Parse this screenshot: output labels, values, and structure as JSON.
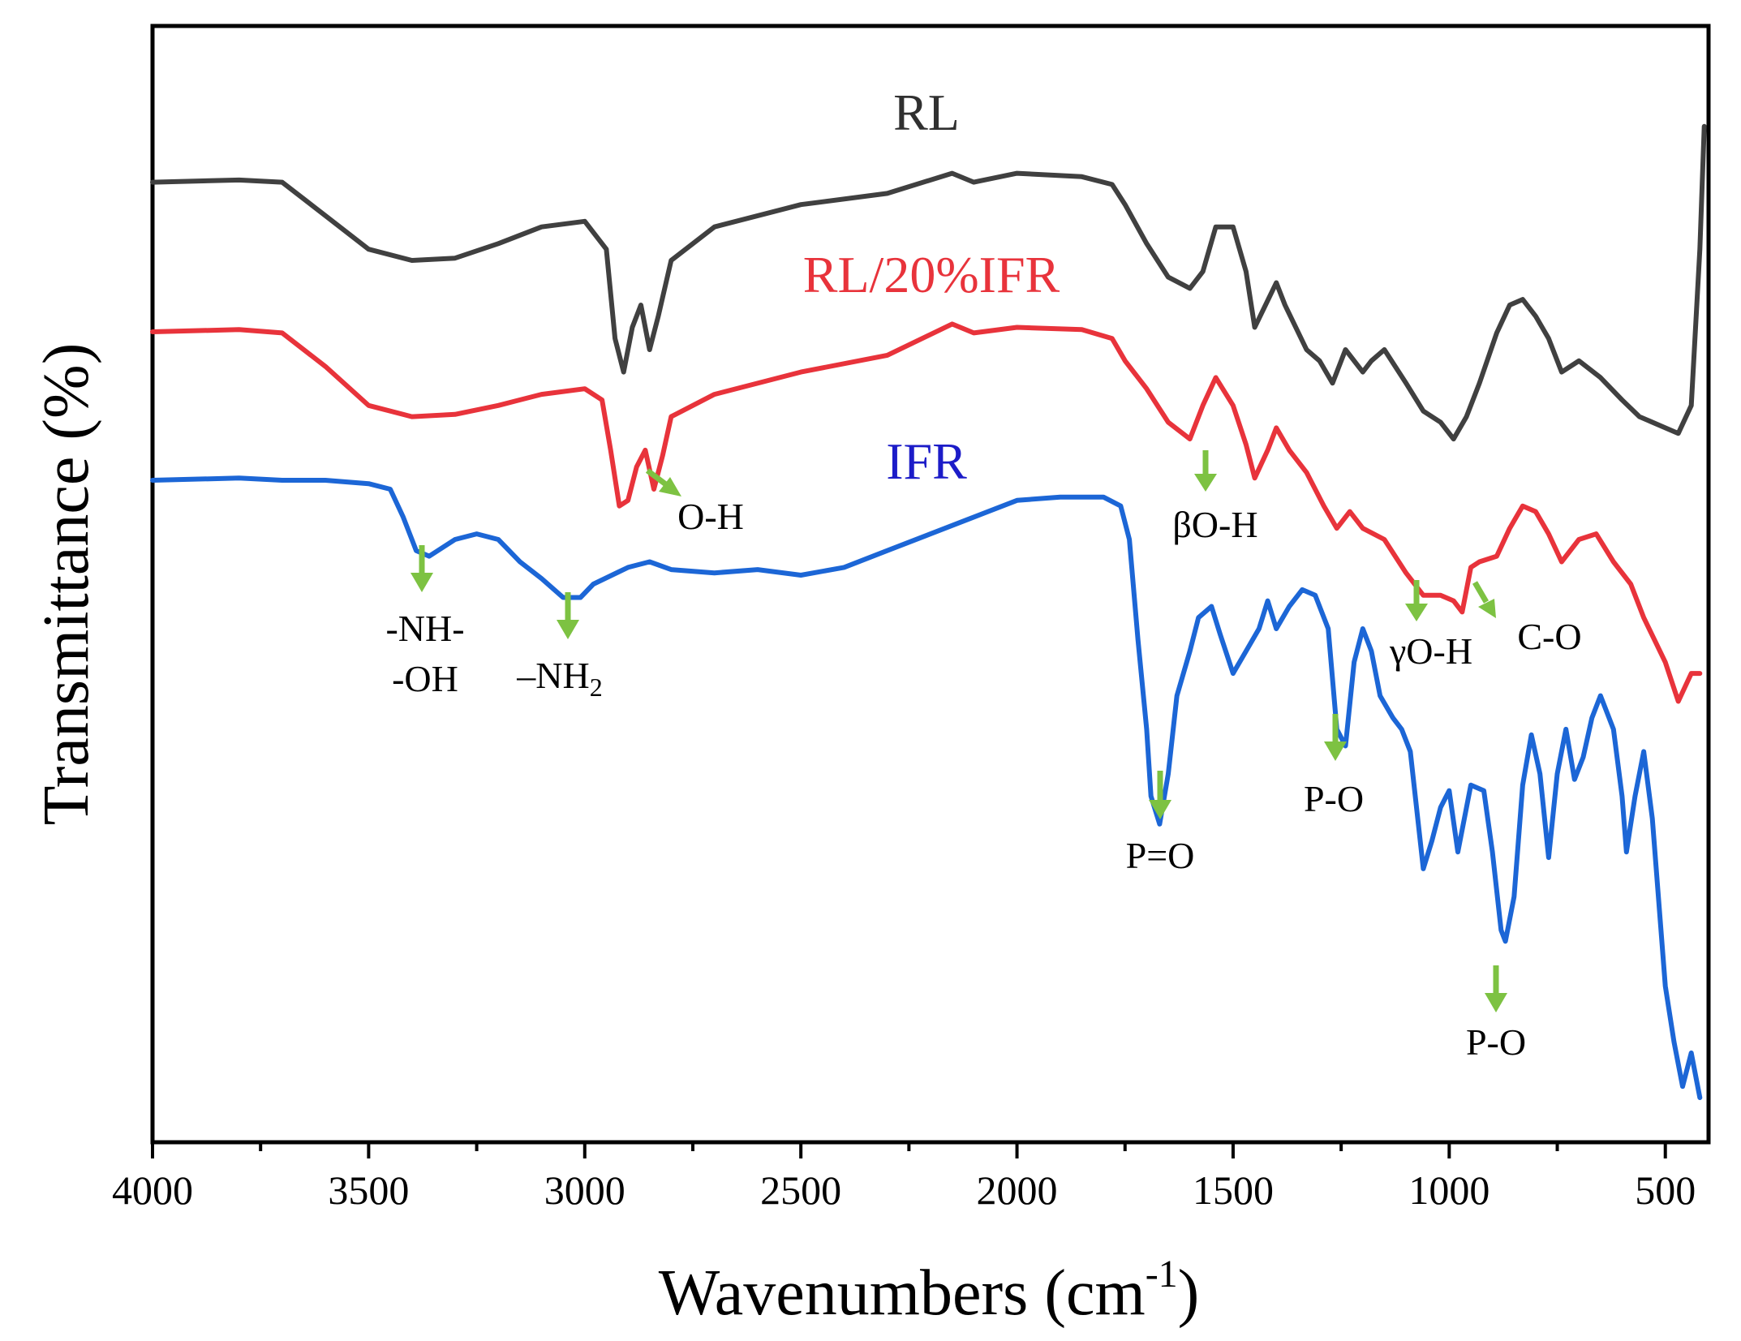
{
  "chart_data": {
    "type": "line",
    "title": "",
    "xlabel": "Wavenumbers (cm",
    "xlabel_sup": "-1",
    "xlabel_close": ")",
    "ylabel": "Transmittance (%)",
    "xlim": [
      4000,
      400
    ],
    "x_ticks": [
      4000,
      3500,
      3000,
      2500,
      2000,
      1500,
      1000,
      500
    ],
    "x_tick_labels": [
      "4000",
      "3500",
      "3000",
      "2500",
      "2000",
      "1500",
      "1000",
      "500"
    ],
    "ylim": [
      0,
      100
    ],
    "y_ticks_shown": false,
    "series": [
      {
        "name": "RL",
        "color": "#404040",
        "points": [
          [
            4000,
            86
          ],
          [
            3800,
            86.2
          ],
          [
            3700,
            86
          ],
          [
            3600,
            83
          ],
          [
            3500,
            80
          ],
          [
            3400,
            79
          ],
          [
            3300,
            79.2
          ],
          [
            3200,
            80.5
          ],
          [
            3100,
            82
          ],
          [
            3000,
            82.5
          ],
          [
            2950,
            80
          ],
          [
            2930,
            72
          ],
          [
            2910,
            69
          ],
          [
            2890,
            73
          ],
          [
            2870,
            75
          ],
          [
            2850,
            71
          ],
          [
            2830,
            74
          ],
          [
            2800,
            79
          ],
          [
            2700,
            82
          ],
          [
            2500,
            84
          ],
          [
            2300,
            85
          ],
          [
            2150,
            86.8
          ],
          [
            2100,
            86
          ],
          [
            2000,
            86.8
          ],
          [
            1850,
            86.5
          ],
          [
            1780,
            85.8
          ],
          [
            1750,
            84
          ],
          [
            1700,
            80.5
          ],
          [
            1650,
            77.5
          ],
          [
            1600,
            76.5
          ],
          [
            1570,
            78
          ],
          [
            1540,
            82
          ],
          [
            1500,
            82
          ],
          [
            1470,
            78
          ],
          [
            1450,
            73
          ],
          [
            1400,
            77
          ],
          [
            1380,
            75
          ],
          [
            1330,
            71
          ],
          [
            1300,
            70
          ],
          [
            1270,
            68
          ],
          [
            1240,
            71
          ],
          [
            1200,
            69
          ],
          [
            1180,
            70
          ],
          [
            1150,
            71
          ],
          [
            1100,
            68
          ],
          [
            1060,
            65.5
          ],
          [
            1020,
            64.5
          ],
          [
            990,
            63
          ],
          [
            960,
            65
          ],
          [
            930,
            68
          ],
          [
            890,
            72.5
          ],
          [
            860,
            75
          ],
          [
            830,
            75.5
          ],
          [
            800,
            74
          ],
          [
            770,
            72
          ],
          [
            740,
            69
          ],
          [
            700,
            70
          ],
          [
            650,
            68.5
          ],
          [
            600,
            66.5
          ],
          [
            560,
            65
          ],
          [
            500,
            64
          ],
          [
            470,
            63.5
          ],
          [
            440,
            66
          ],
          [
            420,
            80
          ],
          [
            410,
            91
          ]
        ]
      },
      {
        "name": "RL/20%IFR",
        "color": "#e8333b",
        "points": [
          [
            4000,
            72.6
          ],
          [
            3800,
            72.8
          ],
          [
            3700,
            72.5
          ],
          [
            3600,
            69.5
          ],
          [
            3500,
            66
          ],
          [
            3400,
            65
          ],
          [
            3300,
            65.2
          ],
          [
            3200,
            66
          ],
          [
            3100,
            67
          ],
          [
            3000,
            67.5
          ],
          [
            2960,
            66.5
          ],
          [
            2940,
            62
          ],
          [
            2920,
            57
          ],
          [
            2900,
            57.5
          ],
          [
            2880,
            60.5
          ],
          [
            2860,
            62
          ],
          [
            2840,
            58.5
          ],
          [
            2820,
            61.5
          ],
          [
            2800,
            65
          ],
          [
            2700,
            67
          ],
          [
            2500,
            69
          ],
          [
            2300,
            70.5
          ],
          [
            2150,
            73.3
          ],
          [
            2100,
            72.5
          ],
          [
            2000,
            73
          ],
          [
            1850,
            72.8
          ],
          [
            1780,
            72
          ],
          [
            1750,
            70
          ],
          [
            1700,
            67.5
          ],
          [
            1650,
            64.5
          ],
          [
            1600,
            63
          ],
          [
            1570,
            66
          ],
          [
            1540,
            68.5
          ],
          [
            1500,
            66
          ],
          [
            1470,
            62.5
          ],
          [
            1450,
            59.5
          ],
          [
            1420,
            62
          ],
          [
            1400,
            64
          ],
          [
            1370,
            62
          ],
          [
            1330,
            60
          ],
          [
            1290,
            57
          ],
          [
            1260,
            55
          ],
          [
            1230,
            56.5
          ],
          [
            1200,
            55
          ],
          [
            1150,
            54
          ],
          [
            1100,
            51
          ],
          [
            1060,
            49
          ],
          [
            1020,
            49
          ],
          [
            990,
            48.5
          ],
          [
            970,
            47.5
          ],
          [
            950,
            51.5
          ],
          [
            930,
            52
          ],
          [
            890,
            52.5
          ],
          [
            860,
            55
          ],
          [
            830,
            57
          ],
          [
            800,
            56.5
          ],
          [
            770,
            54.5
          ],
          [
            740,
            52
          ],
          [
            700,
            54
          ],
          [
            660,
            54.5
          ],
          [
            620,
            52
          ],
          [
            580,
            50
          ],
          [
            550,
            47
          ],
          [
            500,
            43
          ],
          [
            470,
            39.5
          ],
          [
            440,
            42
          ],
          [
            420,
            42
          ]
        ]
      },
      {
        "name": "IFR",
        "color": "#1c66d6",
        "points": [
          [
            4000,
            59.3
          ],
          [
            3800,
            59.5
          ],
          [
            3700,
            59.3
          ],
          [
            3600,
            59.3
          ],
          [
            3500,
            59
          ],
          [
            3450,
            58.5
          ],
          [
            3420,
            56
          ],
          [
            3390,
            53
          ],
          [
            3360,
            52.5
          ],
          [
            3300,
            54
          ],
          [
            3250,
            54.5
          ],
          [
            3200,
            54
          ],
          [
            3150,
            52
          ],
          [
            3100,
            50.5
          ],
          [
            3050,
            48.8
          ],
          [
            3010,
            48.8
          ],
          [
            2980,
            50
          ],
          [
            2900,
            51.5
          ],
          [
            2850,
            52
          ],
          [
            2800,
            51.3
          ],
          [
            2700,
            51
          ],
          [
            2600,
            51.3
          ],
          [
            2500,
            50.8
          ],
          [
            2400,
            51.5
          ],
          [
            2300,
            53
          ],
          [
            2200,
            54.5
          ],
          [
            2100,
            56
          ],
          [
            2000,
            57.5
          ],
          [
            1900,
            57.8
          ],
          [
            1800,
            57.8
          ],
          [
            1760,
            57
          ],
          [
            1740,
            54
          ],
          [
            1720,
            45
          ],
          [
            1700,
            37
          ],
          [
            1690,
            31
          ],
          [
            1670,
            28.5
          ],
          [
            1650,
            33
          ],
          [
            1630,
            40
          ],
          [
            1600,
            44
          ],
          [
            1580,
            47
          ],
          [
            1550,
            48
          ],
          [
            1530,
            45.5
          ],
          [
            1500,
            42
          ],
          [
            1470,
            44
          ],
          [
            1440,
            46
          ],
          [
            1420,
            48.5
          ],
          [
            1400,
            46
          ],
          [
            1370,
            48
          ],
          [
            1340,
            49.5
          ],
          [
            1310,
            49
          ],
          [
            1280,
            46
          ],
          [
            1260,
            37
          ],
          [
            1240,
            35.5
          ],
          [
            1220,
            43
          ],
          [
            1200,
            46
          ],
          [
            1180,
            44
          ],
          [
            1160,
            40
          ],
          [
            1130,
            38
          ],
          [
            1110,
            37
          ],
          [
            1090,
            35
          ],
          [
            1060,
            24.5
          ],
          [
            1040,
            27
          ],
          [
            1020,
            30
          ],
          [
            1000,
            31.5
          ],
          [
            980,
            26
          ],
          [
            950,
            32
          ],
          [
            920,
            31.5
          ],
          [
            900,
            26
          ],
          [
            880,
            19
          ],
          [
            870,
            18
          ],
          [
            850,
            22
          ],
          [
            830,
            32
          ],
          [
            810,
            36.5
          ],
          [
            790,
            33
          ],
          [
            770,
            25.5
          ],
          [
            750,
            33
          ],
          [
            730,
            37
          ],
          [
            710,
            32.5
          ],
          [
            690,
            34.5
          ],
          [
            670,
            38
          ],
          [
            650,
            40
          ],
          [
            620,
            37
          ],
          [
            600,
            31
          ],
          [
            590,
            26
          ],
          [
            570,
            31
          ],
          [
            550,
            35
          ],
          [
            530,
            29
          ],
          [
            500,
            14
          ],
          [
            480,
            9
          ],
          [
            460,
            5
          ],
          [
            440,
            8
          ],
          [
            420,
            4
          ]
        ]
      }
    ],
    "series_labels": {
      "RL": "RL",
      "RL20": "RL/20%IFR",
      "IFR": "IFR"
    },
    "annotations": [
      {
        "label": "O-H",
        "arrow_x": 2830,
        "arrow_dir": "diagonal"
      },
      {
        "label": "-NH-",
        "label2": "-OH",
        "arrow_x": 3370,
        "arrow_dir": "down"
      },
      {
        "label": "–NH",
        "sub": "2",
        "arrow_x": 3030,
        "arrow_dir": "down"
      },
      {
        "label": "βO-H",
        "arrow_x": 1550,
        "arrow_dir": "down"
      },
      {
        "label": "γO-H",
        "arrow_x": 1070,
        "arrow_dir": "down"
      },
      {
        "label": "C-O",
        "arrow_x": 900,
        "arrow_dir": "diagonal"
      },
      {
        "label": "P=O",
        "arrow_x": 1670,
        "arrow_dir": "down"
      },
      {
        "label": "P-O",
        "arrow_x": 1260,
        "arrow_dir": "down",
        "id": "po1"
      },
      {
        "label": "P-O",
        "arrow_x": 870,
        "arrow_dir": "down",
        "id": "po2"
      }
    ]
  }
}
